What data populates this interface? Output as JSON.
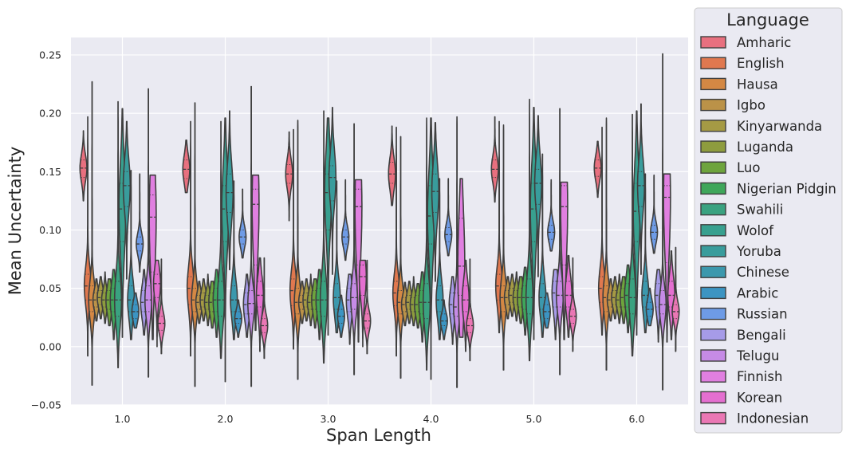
{
  "chart_data": {
    "type": "violin",
    "xlabel": "Span Length",
    "ylabel": "Mean Uncertainty",
    "ylim": [
      -0.05,
      0.265
    ],
    "yticks": [
      -0.05,
      0.0,
      0.05,
      0.1,
      0.15,
      0.2,
      0.25
    ],
    "ytick_labels": [
      "−0.05",
      "0.00",
      "0.05",
      "0.10",
      "0.15",
      "0.20",
      "0.25"
    ],
    "categories": [
      "1.0",
      "2.0",
      "3.0",
      "4.0",
      "5.0",
      "6.0"
    ],
    "grid": true,
    "legend": {
      "title": "Language",
      "position": "outside-right"
    },
    "series": [
      {
        "name": "Amharic",
        "color": "#e8707f",
        "median": [
          0.153,
          0.152,
          0.148,
          0.148,
          0.152,
          0.153
        ],
        "q1": [
          0.145,
          0.144,
          0.14,
          0.14,
          0.145,
          0.146
        ],
        "q3": [
          0.16,
          0.16,
          0.156,
          0.158,
          0.16,
          0.16
        ],
        "min": [
          0.125,
          0.132,
          0.108,
          0.121,
          0.124,
          0.128
        ],
        "max": [
          0.185,
          0.177,
          0.184,
          0.189,
          0.197,
          0.176
        ]
      },
      {
        "name": "English",
        "color": "#e0784f",
        "median": [
          0.052,
          0.05,
          0.048,
          0.046,
          0.052,
          0.05
        ],
        "q1": [
          0.04,
          0.036,
          0.035,
          0.035,
          0.04,
          0.038
        ],
        "q3": [
          0.062,
          0.06,
          0.058,
          0.056,
          0.062,
          0.06
        ],
        "min": [
          -0.008,
          -0.008,
          -0.002,
          -0.008,
          0.012,
          0.01
        ],
        "max": [
          0.197,
          0.193,
          0.186,
          0.188,
          0.193,
          0.188
        ]
      },
      {
        "name": "Hausa",
        "color": "#d48844",
        "median": [
          0.04,
          0.04,
          0.038,
          0.038,
          0.042,
          0.042
        ],
        "q1": [
          0.03,
          0.03,
          0.028,
          0.028,
          0.03,
          0.03
        ],
        "q3": [
          0.052,
          0.05,
          0.05,
          0.048,
          0.052,
          0.052
        ],
        "min": [
          -0.033,
          -0.034,
          -0.028,
          -0.027,
          -0.02,
          -0.02
        ],
        "max": [
          0.227,
          0.209,
          0.194,
          0.18,
          0.19,
          0.196
        ]
      },
      {
        "name": "Igbo",
        "color": "#bb9248",
        "median": [
          0.04,
          0.038,
          0.038,
          0.036,
          0.042,
          0.04
        ],
        "q1": [
          0.034,
          0.032,
          0.032,
          0.03,
          0.036,
          0.034
        ],
        "q3": [
          0.046,
          0.044,
          0.044,
          0.042,
          0.048,
          0.046
        ],
        "min": [
          0.022,
          0.02,
          0.02,
          0.018,
          0.024,
          0.022
        ],
        "max": [
          0.058,
          0.056,
          0.056,
          0.055,
          0.06,
          0.058
        ]
      },
      {
        "name": "Kinyarwanda",
        "color": "#a59a44",
        "median": [
          0.042,
          0.04,
          0.04,
          0.038,
          0.044,
          0.042
        ],
        "q1": [
          0.036,
          0.034,
          0.034,
          0.032,
          0.038,
          0.036
        ],
        "q3": [
          0.048,
          0.046,
          0.046,
          0.044,
          0.05,
          0.048
        ],
        "min": [
          0.024,
          0.022,
          0.022,
          0.02,
          0.026,
          0.024
        ],
        "max": [
          0.06,
          0.058,
          0.058,
          0.056,
          0.062,
          0.06
        ]
      },
      {
        "name": "Luganda",
        "color": "#8e9c3e",
        "median": [
          0.04,
          0.038,
          0.038,
          0.036,
          0.042,
          0.04
        ],
        "q1": [
          0.034,
          0.032,
          0.032,
          0.03,
          0.036,
          0.034
        ],
        "q3": [
          0.046,
          0.044,
          0.044,
          0.042,
          0.048,
          0.046
        ],
        "min": [
          0.02,
          0.018,
          0.018,
          0.018,
          0.022,
          0.02
        ],
        "max": [
          0.064,
          0.062,
          0.062,
          0.06,
          0.064,
          0.062
        ]
      },
      {
        "name": "Luo",
        "color": "#6ea43d",
        "median": [
          0.04,
          0.038,
          0.04,
          0.036,
          0.042,
          0.042
        ],
        "q1": [
          0.032,
          0.03,
          0.032,
          0.03,
          0.034,
          0.034
        ],
        "q3": [
          0.048,
          0.046,
          0.048,
          0.044,
          0.05,
          0.05
        ],
        "min": [
          0.018,
          0.016,
          0.016,
          0.016,
          0.02,
          0.02
        ],
        "max": [
          0.058,
          0.056,
          0.058,
          0.054,
          0.06,
          0.06
        ]
      },
      {
        "name": "Nigerian Pidgin",
        "color": "#3fa65a",
        "median": [
          0.04,
          0.04,
          0.04,
          0.038,
          0.042,
          0.044
        ],
        "q1": [
          0.03,
          0.03,
          0.03,
          0.028,
          0.032,
          0.034
        ],
        "q3": [
          0.05,
          0.05,
          0.05,
          0.048,
          0.052,
          0.054
        ],
        "min": [
          0.006,
          0.008,
          0.006,
          0.004,
          0.01,
          0.012
        ],
        "max": [
          0.066,
          0.066,
          0.066,
          0.064,
          0.068,
          0.07
        ]
      },
      {
        "name": "Swahili",
        "color": "#3aa280",
        "median": [
          0.04,
          0.04,
          0.04,
          0.038,
          0.042,
          0.042
        ],
        "q1": [
          0.026,
          0.026,
          0.026,
          0.024,
          0.028,
          0.028
        ],
        "q3": [
          0.056,
          0.056,
          0.056,
          0.054,
          0.058,
          0.058
        ],
        "min": [
          -0.018,
          -0.01,
          -0.014,
          -0.02,
          -0.012,
          -0.008
        ],
        "max": [
          0.21,
          0.193,
          0.202,
          0.196,
          0.212,
          0.199
        ]
      },
      {
        "name": "Wolof",
        "color": "#38a08f",
        "median": [
          0.118,
          0.118,
          0.132,
          0.112,
          0.118,
          0.116
        ],
        "q1": [
          0.09,
          0.09,
          0.1,
          0.088,
          0.09,
          0.09
        ],
        "q3": [
          0.14,
          0.138,
          0.148,
          0.138,
          0.14,
          0.14
        ],
        "min": [
          0.008,
          -0.03,
          0.01,
          -0.028,
          0.006,
          0.01
        ],
        "max": [
          0.204,
          0.196,
          0.196,
          0.196,
          0.205,
          0.202
        ]
      },
      {
        "name": "Yoruba",
        "color": "#399c9c",
        "median": [
          0.138,
          0.132,
          0.145,
          0.133,
          0.14,
          0.138
        ],
        "q1": [
          0.12,
          0.115,
          0.125,
          0.115,
          0.122,
          0.12
        ],
        "q3": [
          0.15,
          0.148,
          0.155,
          0.148,
          0.152,
          0.15
        ],
        "min": [
          0.058,
          0.066,
          0.062,
          0.056,
          0.06,
          0.062
        ],
        "max": [
          0.193,
          0.202,
          0.205,
          0.192,
          0.198,
          0.208
        ]
      },
      {
        "name": "Chinese",
        "color": "#3c98ad",
        "median": [
          0.04,
          0.04,
          0.042,
          0.04,
          0.042,
          0.044
        ],
        "q1": [
          0.03,
          0.03,
          0.032,
          0.03,
          0.032,
          0.034
        ],
        "q3": [
          0.052,
          0.052,
          0.054,
          0.052,
          0.054,
          0.056
        ],
        "min": [
          0.006,
          0.006,
          0.012,
          0.006,
          0.008,
          0.012
        ],
        "max": [
          0.151,
          0.142,
          0.142,
          0.144,
          0.165,
          0.148
        ]
      },
      {
        "name": "Arabic",
        "color": "#3c94c2",
        "median": [
          0.03,
          0.024,
          0.026,
          0.022,
          0.03,
          0.032
        ],
        "q1": [
          0.024,
          0.02,
          0.02,
          0.018,
          0.024,
          0.026
        ],
        "q3": [
          0.036,
          0.03,
          0.032,
          0.028,
          0.036,
          0.038
        ],
        "min": [
          0.016,
          0.008,
          0.008,
          0.006,
          0.016,
          0.018
        ],
        "max": [
          0.046,
          0.04,
          0.044,
          0.04,
          0.046,
          0.05
        ]
      },
      {
        "name": "Russian",
        "color": "#6e9be6",
        "median": [
          0.088,
          0.094,
          0.094,
          0.096,
          0.098,
          0.098
        ],
        "q1": [
          0.082,
          0.088,
          0.088,
          0.09,
          0.092,
          0.092
        ],
        "q3": [
          0.094,
          0.1,
          0.1,
          0.102,
          0.104,
          0.104
        ],
        "min": [
          0.064,
          0.076,
          0.074,
          0.078,
          0.082,
          0.08
        ],
        "max": [
          0.148,
          0.135,
          0.143,
          0.144,
          0.143,
          0.147
        ]
      },
      {
        "name": "Bengali",
        "color": "#a69be8",
        "median": [
          0.038,
          0.036,
          0.04,
          0.036,
          0.046,
          0.044
        ],
        "q1": [
          0.03,
          0.028,
          0.03,
          0.028,
          0.034,
          0.034
        ],
        "q3": [
          0.048,
          0.046,
          0.05,
          0.046,
          0.056,
          0.054
        ],
        "min": [
          0.01,
          0.008,
          0.002,
          0.002,
          0.006,
          0.004
        ],
        "max": [
          0.066,
          0.062,
          0.062,
          0.06,
          0.066,
          0.066
        ]
      },
      {
        "name": "Telugu",
        "color": "#c68be6",
        "median": [
          0.04,
          0.037,
          0.042,
          0.034,
          0.044,
          0.036
        ],
        "q1": [
          0.03,
          0.028,
          0.032,
          0.026,
          0.034,
          0.028
        ],
        "q3": [
          0.052,
          0.048,
          0.054,
          0.046,
          0.056,
          0.048
        ],
        "min": [
          -0.026,
          -0.034,
          -0.024,
          -0.035,
          -0.024,
          -0.037
        ],
        "max": [
          0.221,
          0.223,
          0.191,
          0.197,
          0.204,
          0.251
        ]
      },
      {
        "name": "Finnish",
        "color": "#e07fe0",
        "median": [
          0.111,
          0.122,
          0.12,
          0.069,
          0.12,
          0.128
        ],
        "q1": [
          0.064,
          0.07,
          0.07,
          0.044,
          0.07,
          0.072
        ],
        "q3": [
          0.13,
          0.135,
          0.135,
          0.11,
          0.138,
          0.138
        ],
        "min": [
          0.006,
          0.014,
          0.004,
          0.008,
          0.006,
          0.004
        ],
        "max": [
          0.147,
          0.147,
          0.143,
          0.144,
          0.141,
          0.148
        ]
      },
      {
        "name": "Korean",
        "color": "#e46fd0",
        "median": [
          0.054,
          0.044,
          0.06,
          0.04,
          0.044,
          0.044
        ],
        "q1": [
          0.042,
          0.034,
          0.044,
          0.03,
          0.034,
          0.034
        ],
        "q3": [
          0.062,
          0.056,
          0.07,
          0.052,
          0.056,
          0.056
        ],
        "min": [
          0.0,
          -0.004,
          0.0,
          -0.004,
          0.008,
          0.006
        ],
        "max": [
          0.074,
          0.076,
          0.074,
          0.074,
          0.078,
          0.082
        ]
      },
      {
        "name": "Indonesian",
        "color": "#ea77b4",
        "median": [
          0.02,
          0.018,
          0.022,
          0.018,
          0.026,
          0.03
        ],
        "q1": [
          0.014,
          0.012,
          0.016,
          0.012,
          0.02,
          0.024
        ],
        "q3": [
          0.026,
          0.024,
          0.028,
          0.024,
          0.032,
          0.036
        ],
        "min": [
          -0.006,
          -0.01,
          -0.006,
          -0.012,
          -0.004,
          -0.004
        ],
        "max": [
          0.075,
          0.076,
          0.074,
          0.075,
          0.076,
          0.085
        ]
      }
    ]
  }
}
